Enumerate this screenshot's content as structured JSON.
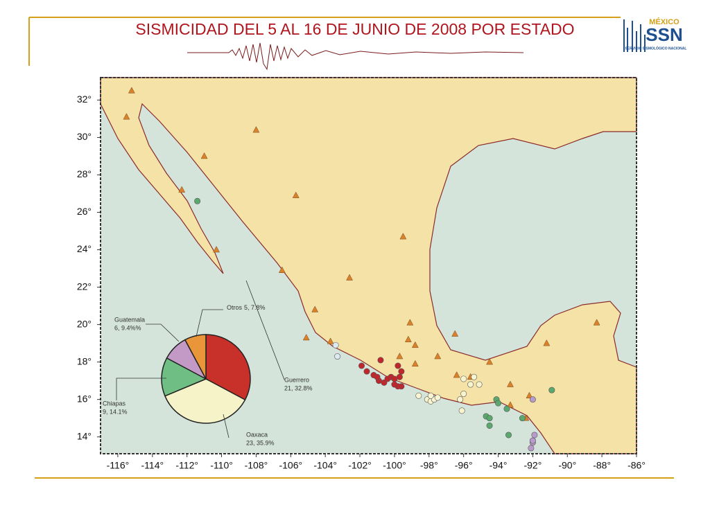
{
  "header": {
    "title": "SISMICIDAD DEL 5 AL 16 DE JUNIO DE 2008 POR ESTADO",
    "logo": {
      "top": "MÉXICO",
      "main": "SSN",
      "sub": "SERVICIO SISMOLÓGICO NACIONAL"
    }
  },
  "map": {
    "xlim": [
      -117,
      -86
    ],
    "ylim": [
      13.1,
      33.2
    ],
    "xticks": [
      {
        "value": -116,
        "label": "-116°"
      },
      {
        "value": -114,
        "label": "-114°"
      },
      {
        "value": -112,
        "label": "-112°"
      },
      {
        "value": -110,
        "label": "-110°"
      },
      {
        "value": -108,
        "label": "-108°"
      },
      {
        "value": -106,
        "label": "-106°"
      },
      {
        "value": -104,
        "label": "-104°"
      },
      {
        "value": -102,
        "label": "-102°"
      },
      {
        "value": -100,
        "label": "-100°"
      },
      {
        "value": -98,
        "label": "-98°"
      },
      {
        "value": -96,
        "label": "-96°"
      },
      {
        "value": -94,
        "label": "-94°"
      },
      {
        "value": -92,
        "label": "-92°"
      },
      {
        "value": -90,
        "label": "-90°"
      },
      {
        "value": -88,
        "label": "-88°"
      },
      {
        "value": -86,
        "label": "-86°"
      }
    ],
    "yticks": [
      {
        "value": 14,
        "label": "14°"
      },
      {
        "value": 16,
        "label": "16°"
      },
      {
        "value": 18,
        "label": "18°"
      },
      {
        "value": 20,
        "label": "20°"
      },
      {
        "value": 22,
        "label": "22°"
      },
      {
        "value": 24,
        "label": "24°"
      },
      {
        "value": 26,
        "label": "26°"
      },
      {
        "value": 28,
        "label": "28°"
      },
      {
        "value": 30,
        "label": "30°"
      },
      {
        "value": 32,
        "label": "32°"
      }
    ],
    "events": [
      {
        "name": "Guerrero",
        "color": "#c0272d",
        "lon": [
          -101.9,
          -101.6,
          -101.2,
          -100.8,
          -100.9,
          -100.6,
          -100.4,
          -100.2,
          -100.0,
          -99.8,
          -99.7,
          -99.6,
          -99.8,
          -100.0,
          -99.6,
          -101.0
        ],
        "lat": [
          17.8,
          17.5,
          17.3,
          18.1,
          17.0,
          16.9,
          17.1,
          17.2,
          17.1,
          17.8,
          17.2,
          16.7,
          16.7,
          16.8,
          17.5,
          17.2
        ]
      },
      {
        "name": "Oaxaca",
        "color": "#f8f4d0",
        "lon": [
          -98.6,
          -98.1,
          -97.9,
          -97.7,
          -97.9,
          -96.1,
          -96.2,
          -96.0,
          -95.6,
          -95.4,
          -95.1,
          -96.0,
          -97.5
        ],
        "lat": [
          16.2,
          16.0,
          15.9,
          16.0,
          16.2,
          15.4,
          16.0,
          16.3,
          16.8,
          17.2,
          16.8,
          17.1,
          16.1
        ]
      },
      {
        "name": "Chiapas",
        "color": "#5aa86d",
        "lon": [
          -94.1,
          -94.0,
          -93.5,
          -94.7,
          -94.5,
          -94.5,
          -92.6,
          -93.4,
          -90.9,
          -111.4
        ],
        "lat": [
          16.0,
          15.8,
          15.5,
          15.1,
          15.0,
          14.6,
          15.0,
          14.1,
          16.5,
          26.6
        ]
      },
      {
        "name": "Guatemala",
        "color": "#b99bc9",
        "lon": [
          -92.0,
          -91.9,
          -92.0,
          -92.1,
          -92.0
        ],
        "lat": [
          16.0,
          14.1,
          13.7,
          13.4,
          13.8
        ]
      },
      {
        "name": "Otros",
        "color": "#dde8f0",
        "lon": [
          -103.4,
          -103.3
        ],
        "lat": [
          18.9,
          18.3
        ]
      }
    ],
    "stations": {
      "color": "#d9822b",
      "lon": [
        -115.2,
        -115.5,
        -111,
        -108,
        -112.3,
        -105.7,
        -110.3,
        -99.5,
        -106.5,
        -102.6,
        -104.6,
        -105.1,
        -103.7,
        -99.1,
        -99.2,
        -98.8,
        -99.7,
        -98.8,
        -97.5,
        -96.5,
        -95.6,
        -94.5,
        -93.3,
        -92.2,
        -92.4,
        -91.2,
        -88.3,
        -93.3,
        -96.4
      ],
      "lat": [
        32.5,
        31.1,
        29,
        30.4,
        27.2,
        26.9,
        24.0,
        24.7,
        22.9,
        22.5,
        20.8,
        19.3,
        19.1,
        20.1,
        19.2,
        18.9,
        18.3,
        17.9,
        18.3,
        19.5,
        17.2,
        18.0,
        16.8,
        16.2,
        15.0,
        19.0,
        20.1,
        15.7,
        17.3
      ]
    }
  },
  "chart_data": {
    "type": "pie",
    "categories": [
      "Guerrero",
      "Oaxaca",
      "Chiapas",
      "Guatemala",
      "Otros"
    ],
    "values": [
      32.8,
      35.9,
      14.1,
      9.4,
      7.8
    ],
    "value_labels": [
      "21, 32.8%",
      "23, 35.9%",
      "9, 14.1%",
      "6, 9.4%%",
      "5, 7.8%"
    ],
    "colors": [
      "#c8302a",
      "#f7f3c9",
      "#6fbf85",
      "#c39ac6",
      "#e9963a"
    ]
  }
}
